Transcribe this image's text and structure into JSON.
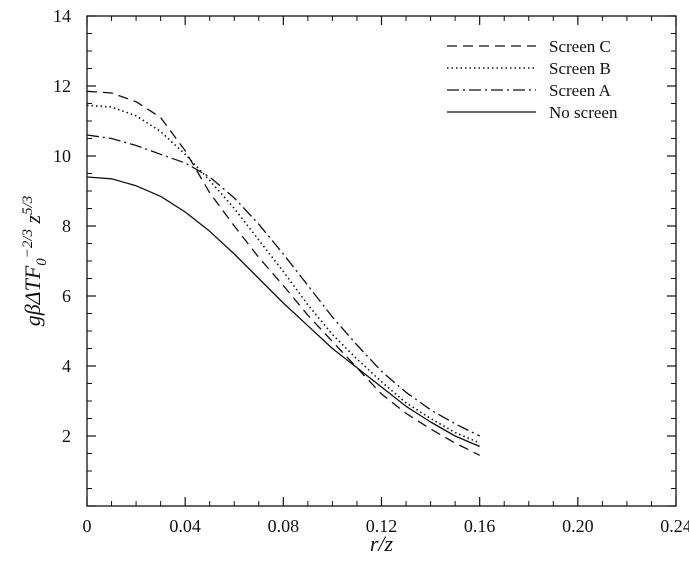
{
  "chart_data": {
    "type": "line",
    "xlabel": "r/z",
    "ylabel": "gβΔTF0^−2/3 z^5/3",
    "xlim": [
      0,
      0.24
    ],
    "ylim": [
      0,
      14
    ],
    "xticks": [
      0,
      0.04,
      0.08,
      0.12,
      0.16,
      0.2,
      0.24
    ],
    "xtick_labels": [
      "0",
      "0.04",
      "0.08",
      "0.12",
      "0.16",
      "0.20",
      "0.24"
    ],
    "yticks": [
      2,
      4,
      6,
      8,
      10,
      12,
      14
    ],
    "ytick_labels": [
      "2",
      "4",
      "6",
      "8",
      "10",
      "12",
      "14"
    ],
    "grid": false,
    "legend_position": "top-right",
    "series": [
      {
        "name": "Screen C",
        "dash": "dashed",
        "x": [
          0,
          0.01,
          0.02,
          0.03,
          0.04,
          0.05,
          0.06,
          0.07,
          0.08,
          0.09,
          0.1,
          0.11,
          0.12,
          0.13,
          0.14,
          0.15,
          0.16
        ],
        "y": [
          11.85,
          11.8,
          11.55,
          11.1,
          10.15,
          8.95,
          8.0,
          7.1,
          6.3,
          5.45,
          4.7,
          3.95,
          3.2,
          2.65,
          2.2,
          1.8,
          1.45
        ]
      },
      {
        "name": "Screen B",
        "dash": "dotted",
        "x": [
          0,
          0.01,
          0.02,
          0.03,
          0.04,
          0.05,
          0.06,
          0.07,
          0.08,
          0.09,
          0.1,
          0.11,
          0.12,
          0.13,
          0.14,
          0.15,
          0.16
        ],
        "y": [
          11.45,
          11.4,
          11.15,
          10.7,
          10.05,
          9.3,
          8.5,
          7.6,
          6.7,
          5.75,
          4.9,
          4.2,
          3.55,
          2.95,
          2.5,
          2.1,
          1.8
        ]
      },
      {
        "name": "Screen A",
        "dash": "dashdot",
        "x": [
          0,
          0.01,
          0.02,
          0.03,
          0.04,
          0.05,
          0.06,
          0.07,
          0.08,
          0.09,
          0.1,
          0.11,
          0.12,
          0.13,
          0.14,
          0.15,
          0.16
        ],
        "y": [
          10.6,
          10.5,
          10.3,
          10.05,
          9.8,
          9.4,
          8.8,
          8.05,
          7.2,
          6.3,
          5.4,
          4.6,
          3.85,
          3.25,
          2.75,
          2.35,
          2.0
        ]
      },
      {
        "name": "No screen",
        "dash": "solid",
        "x": [
          0,
          0.01,
          0.02,
          0.03,
          0.04,
          0.05,
          0.06,
          0.07,
          0.08,
          0.09,
          0.1,
          0.11,
          0.12,
          0.13,
          0.14,
          0.15,
          0.16
        ],
        "y": [
          9.4,
          9.35,
          9.15,
          8.85,
          8.4,
          7.85,
          7.2,
          6.5,
          5.8,
          5.15,
          4.5,
          3.95,
          3.4,
          2.85,
          2.4,
          2.0,
          1.7
        ]
      }
    ]
  }
}
